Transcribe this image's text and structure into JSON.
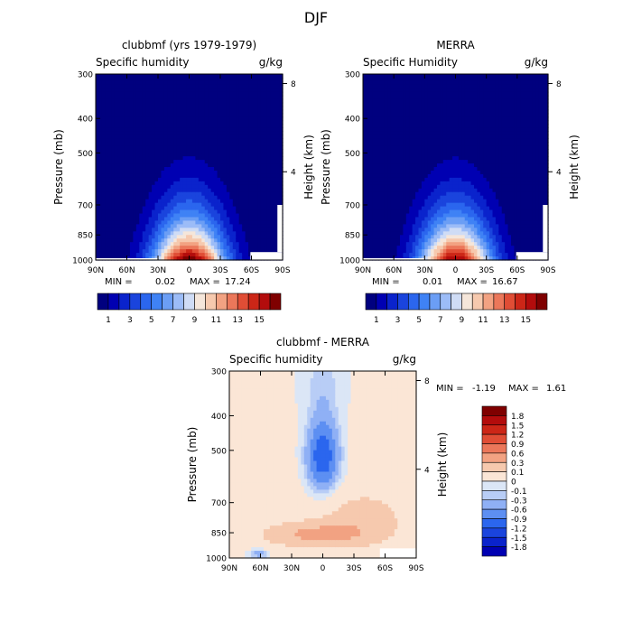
{
  "page": {
    "season_title": "DJF"
  },
  "colors": {
    "abs_palette": [
      "#00007f",
      "#0000b2",
      "#0a23cc",
      "#1a44dd",
      "#2b66ee",
      "#3f82f5",
      "#6b9ef5",
      "#9cbcf7",
      "#cfdcf5",
      "#f5e6da",
      "#f6c9ae",
      "#f2a282",
      "#eb775a",
      "#e04d35",
      "#cc2617",
      "#b30c0c",
      "#7f0000"
    ],
    "diff_palette": [
      "#00007f",
      "#0000b2",
      "#0a23cc",
      "#1a44dd",
      "#2b66ee",
      "#5d8ff2",
      "#8fb0f5",
      "#b8cdf6",
      "#dbe6f6",
      "#fbe6d6",
      "#f6c9ae",
      "#f2a282",
      "#eb775a",
      "#e04d35",
      "#cc2617",
      "#b30c0c",
      "#7f0000"
    ]
  },
  "chart_data": [
    {
      "type": "heatmap",
      "title": "clubbmf (yrs 1979-1979)",
      "subtitle_left": "Specific humidity",
      "subtitle_right": "g/kg",
      "ylabel": "Pressure (mb)",
      "y2label": "Height (km)",
      "xticks": [
        "90N",
        "60N",
        "30N",
        "0",
        "30S",
        "60S",
        "90S"
      ],
      "yticks": [
        "300",
        "400",
        "500",
        "700",
        "850",
        "1000"
      ],
      "y2ticks": [
        "8",
        "4"
      ],
      "ylim": [
        1000,
        300
      ],
      "xlim": [
        90,
        -90
      ],
      "min_label": "MIN =",
      "min_value": "0.02",
      "max_label": "MAX =",
      "max_value": "17.24",
      "peak": 17.24,
      "scale": 1.0,
      "colorbar_labels": [
        "1",
        "3",
        "5",
        "7",
        "9",
        "11",
        "13",
        "15"
      ],
      "levels": [
        1,
        2,
        3,
        4,
        5,
        6,
        7,
        8,
        9,
        10,
        11,
        12,
        13,
        14,
        15,
        16
      ]
    },
    {
      "type": "heatmap",
      "title": "MERRA",
      "subtitle_left": "Specific Humidity",
      "subtitle_right": "g/kg",
      "ylabel": "Pressure (mb)",
      "y2label": "Height (km)",
      "xticks": [
        "90N",
        "60N",
        "30N",
        "0",
        "30S",
        "60S",
        "90S"
      ],
      "yticks": [
        "300",
        "400",
        "500",
        "700",
        "850",
        "1000"
      ],
      "y2ticks": [
        "8",
        "4"
      ],
      "ylim": [
        1000,
        300
      ],
      "xlim": [
        90,
        -90
      ],
      "min_label": "MIN =",
      "min_value": "0.01",
      "max_label": "MAX =",
      "max_value": "16.67",
      "peak": 16.67,
      "scale": 1.0,
      "colorbar_labels": [
        "1",
        "3",
        "5",
        "7",
        "9",
        "11",
        "13",
        "15"
      ],
      "levels": [
        1,
        2,
        3,
        4,
        5,
        6,
        7,
        8,
        9,
        10,
        11,
        12,
        13,
        14,
        15,
        16
      ]
    },
    {
      "type": "heatmap",
      "title": "clubbmf - MERRA",
      "subtitle_left": "Specific humidity",
      "subtitle_right": "g/kg",
      "ylabel": "Pressure (mb)",
      "y2label": "Height (km)",
      "xticks": [
        "90N",
        "60N",
        "30N",
        "0",
        "30S",
        "60S",
        "90S"
      ],
      "yticks": [
        "300",
        "400",
        "500",
        "700",
        "850",
        "1000"
      ],
      "y2ticks": [
        "8",
        "4"
      ],
      "ylim": [
        1000,
        300
      ],
      "xlim": [
        90,
        -90
      ],
      "min_label": "MIN =",
      "min_value": "-1.19",
      "max_label": "MAX =",
      "max_value": "1.61",
      "colorbar_labels": [
        "1.8",
        "1.5",
        "1.2",
        "0.9",
        "0.6",
        "0.3",
        "0.1",
        "0",
        "-0.1",
        "-0.3",
        "-0.6",
        "-0.9",
        "-1.2",
        "-1.5",
        "-1.8"
      ],
      "levels": [
        -1.8,
        -1.5,
        -1.2,
        -0.9,
        -0.6,
        -0.3,
        -0.1,
        0,
        0.1,
        0.3,
        0.6,
        0.9,
        1.2,
        1.5,
        1.8
      ]
    }
  ]
}
